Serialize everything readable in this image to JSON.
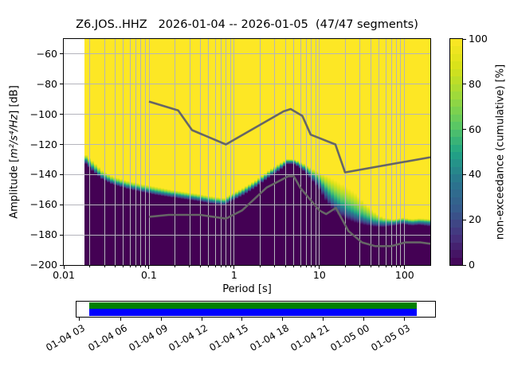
{
  "figure": {
    "title": "Z6.JOS..HHZ   2026-01-04 -- 2026-01-05  (47/47 segments)",
    "station_id": "Z6.JOS..HHZ",
    "date_range": "2026-01-04 -- 2026-01-05",
    "segments": "47/47 segments",
    "background_color": "#ffffff"
  },
  "axes": {
    "xlabel": "Period [s]",
    "ylabel_prefix": "Amplitude [",
    "ylabel_math": "m²/s⁴/Hz",
    "ylabel_suffix": "] [dB]",
    "x_scale": "log",
    "xlim": [
      0.01,
      200
    ],
    "ylim": [
      -200,
      -50
    ],
    "x_ticks": [
      {
        "label": "0.01",
        "value": 0.01
      },
      {
        "label": "0.1",
        "value": 0.1
      },
      {
        "label": "1",
        "value": 1
      },
      {
        "label": "10",
        "value": 10
      },
      {
        "label": "100",
        "value": 100
      }
    ],
    "y_ticks": [
      {
        "label": "−60",
        "value": -60
      },
      {
        "label": "−80",
        "value": -80
      },
      {
        "label": "−100",
        "value": -100
      },
      {
        "label": "−120",
        "value": -120
      },
      {
        "label": "−140",
        "value": -140
      },
      {
        "label": "−160",
        "value": -160
      },
      {
        "label": "−180",
        "value": -180
      },
      {
        "label": "−200",
        "value": -200
      }
    ],
    "grid_color": "#b4b4bc",
    "frame_color": "#000000"
  },
  "colorbar": {
    "label": "non-exceedance (cumulative) [%]",
    "ticks": [
      {
        "label": "0",
        "value": 0
      },
      {
        "label": "20",
        "value": 20
      },
      {
        "label": "40",
        "value": 40
      },
      {
        "label": "60",
        "value": 60
      },
      {
        "label": "80",
        "value": 80
      },
      {
        "label": "100",
        "value": 100
      }
    ],
    "levels": 30,
    "range": [
      0,
      100
    ]
  },
  "chart_data": {
    "type": "heatmap",
    "title": "Z6.JOS..HHZ   2026-01-04 -- 2026-01-05  (47/47 segments)",
    "xlabel": "Period [s]",
    "ylabel": "Amplitude [m²/s⁴/Hz] [dB]",
    "zlabel": "non-exceedance (cumulative) [%]",
    "x_scale": "log",
    "xlim": [
      0.01,
      200
    ],
    "ylim": [
      -200,
      -50
    ],
    "zlim": [
      0,
      100
    ],
    "colormap_viridis_anchors": [
      "#440154",
      "#46327e",
      "#365c8d",
      "#2a788e",
      "#21a585",
      "#5ec962",
      "#9fda3a",
      "#d8e219",
      "#fde725"
    ],
    "data_period_range": [
      0.0175,
      200
    ],
    "cumulative_distribution": {
      "description": "Per period: amplitude [dB] at which cumulative non-exceedance reaches 100%, 50%, 0%. Color is yellow (100%) above db_100pct, dark purple (0%) below db_0pct, viridis gradient between.",
      "columns": [
        "period_s",
        "db_100pct",
        "db_50pct",
        "db_0pct"
      ],
      "points": [
        [
          0.0175,
          -126,
          -129,
          -132
        ],
        [
          0.022,
          -131,
          -135,
          -138
        ],
        [
          0.028,
          -137,
          -140.5,
          -143
        ],
        [
          0.037,
          -141,
          -144,
          -146.5
        ],
        [
          0.055,
          -144,
          -147,
          -149.5
        ],
        [
          0.08,
          -146,
          -149,
          -151.5
        ],
        [
          0.12,
          -148,
          -151,
          -153.5
        ],
        [
          0.2,
          -150.5,
          -153,
          -155.5
        ],
        [
          0.35,
          -152.5,
          -155,
          -157.5
        ],
        [
          0.55,
          -154.5,
          -157,
          -159.5
        ],
        [
          0.75,
          -155.5,
          -158,
          -160.5
        ],
        [
          0.95,
          -152.5,
          -155,
          -157.5
        ],
        [
          1.3,
          -148.5,
          -151,
          -153.5
        ],
        [
          1.8,
          -143.5,
          -146,
          -148.5
        ],
        [
          2.5,
          -137.5,
          -140,
          -142.5
        ],
        [
          3.4,
          -132.5,
          -135,
          -137.5
        ],
        [
          4.3,
          -129.5,
          -131,
          -133
        ],
        [
          5.2,
          -130,
          -131.5,
          -133.5
        ],
        [
          6.5,
          -132.5,
          -135,
          -137.5
        ],
        [
          8,
          -135.5,
          -139,
          -143
        ],
        [
          10,
          -138.5,
          -144,
          -150
        ],
        [
          12.5,
          -141,
          -151,
          -159
        ],
        [
          16,
          -144,
          -157,
          -166
        ],
        [
          20,
          -147.5,
          -161.5,
          -169.5
        ],
        [
          26,
          -152,
          -165,
          -172
        ],
        [
          33,
          -158,
          -168,
          -173.5
        ],
        [
          42,
          -164,
          -170.5,
          -174.5
        ],
        [
          55,
          -168.5,
          -171.5,
          -175
        ],
        [
          75,
          -169.5,
          -171.5,
          -174
        ],
        [
          95,
          -168.5,
          -170.5,
          -173
        ],
        [
          120,
          -169.5,
          -171.5,
          -174
        ],
        [
          150,
          -169,
          -171,
          -173.5
        ],
        [
          200,
          -169.5,
          -171.5,
          -174.5
        ]
      ]
    },
    "noise_models": {
      "description": "Peterson (1993) new high/low noise model reference curves, gray lines, plotted from 0.1 s.",
      "color": "#666666",
      "nhnm": [
        [
          0.1,
          -91.5
        ],
        [
          0.22,
          -97.4
        ],
        [
          0.32,
          -110.5
        ],
        [
          0.8,
          -120
        ],
        [
          3.8,
          -98
        ],
        [
          4.6,
          -96.5
        ],
        [
          6.3,
          -101
        ],
        [
          7.9,
          -113.5
        ],
        [
          15.4,
          -120
        ],
        [
          20,
          -138.5
        ],
        [
          200,
          -128.5
        ]
      ],
      "nlnm": [
        [
          0.1,
          -168
        ],
        [
          0.17,
          -166.7
        ],
        [
          0.4,
          -166.7
        ],
        [
          0.8,
          -169.2
        ],
        [
          1.24,
          -163.7
        ],
        [
          2.4,
          -148.6
        ],
        [
          4.3,
          -141.1
        ],
        [
          5,
          -141.1
        ],
        [
          6,
          -149
        ],
        [
          10,
          -163.8
        ],
        [
          12,
          -166.2
        ],
        [
          15.6,
          -162.1
        ],
        [
          21.9,
          -177.5
        ],
        [
          31.6,
          -185
        ],
        [
          45,
          -187.5
        ],
        [
          70,
          -187.5
        ],
        [
          101,
          -185
        ],
        [
          154,
          -185
        ],
        [
          200,
          -185.9
        ]
      ]
    }
  },
  "timeline": {
    "tick_labels": [
      "01-04 03",
      "01-04 06",
      "01-04 09",
      "01-04 12",
      "01-04 15",
      "01-04 18",
      "01-04 21",
      "01-05 00",
      "01-05 03"
    ],
    "tick_positions": [
      0.009,
      0.125,
      0.238,
      0.35,
      0.462,
      0.575,
      0.687,
      0.799,
      0.912
    ],
    "coverage_color": "#008000",
    "extent_color": "#0000ff",
    "bar_start_frac": 0.0376,
    "bar_end_frac": 0.9469
  }
}
